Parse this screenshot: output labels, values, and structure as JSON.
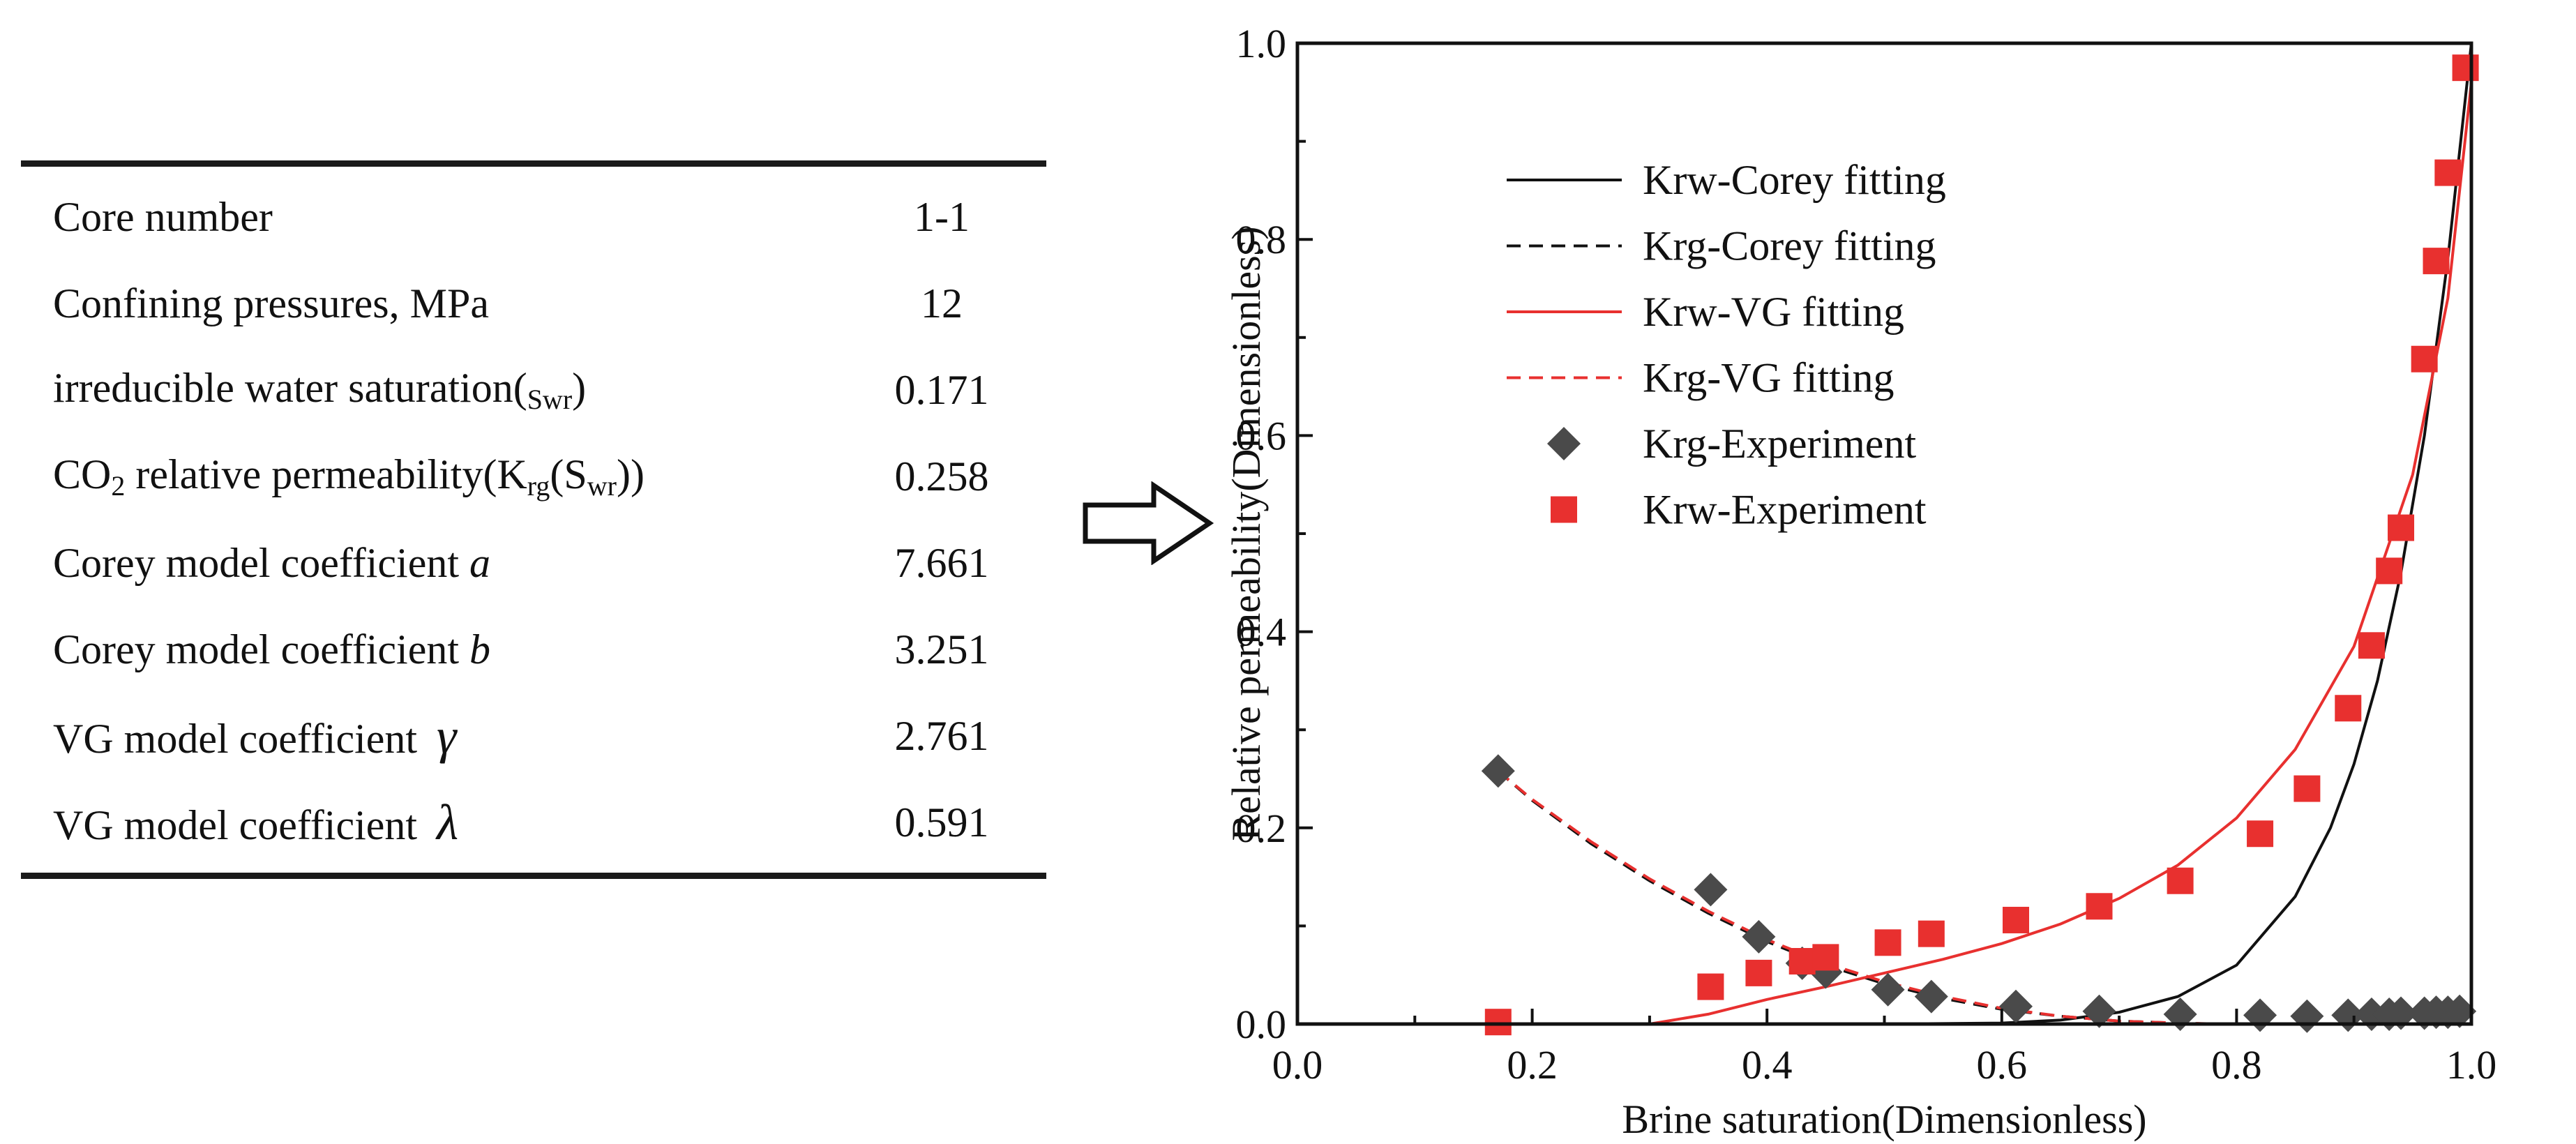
{
  "table": {
    "rows": [
      {
        "label": "Core number",
        "value": "1-1"
      },
      {
        "label": "Confining pressures, MPa",
        "value": "12"
      },
      {
        "label": "irreducible water saturation(",
        "sub": "Swr",
        "tail": ")",
        "value": "0.171"
      },
      {
        "label": "CO",
        "sub": "2",
        "label2": " relative permeability(K",
        "sub2": "rg",
        "label3": "(S",
        "sub3": "wr",
        "tail": "))",
        "value": "0.258"
      },
      {
        "label": "Corey model coefficient ",
        "symbol": "a",
        "value": "7.661"
      },
      {
        "label": "Corey model coefficient ",
        "symbol": "b",
        "value": "3.251"
      },
      {
        "label": "VG model coefficient",
        "symbol": "γ",
        "value": "2.761"
      },
      {
        "label": "VG model coefficient",
        "symbol": "λ",
        "value": "0.591"
      }
    ]
  },
  "chart_data": {
    "type": "scatter",
    "xlabel": "Brine saturation(Dimensionless)",
    "ylabel": "Relative permeability(Dimensionless)",
    "xlim": [
      0.0,
      1.0
    ],
    "ylim": [
      0.0,
      1.0
    ],
    "x_ticks": [
      0.0,
      0.2,
      0.4,
      0.6,
      0.8,
      1.0
    ],
    "y_ticks": [
      0.0,
      0.2,
      0.4,
      0.6,
      0.8,
      1.0
    ],
    "tick_labels_x": [
      "0.0",
      "0.2",
      "0.4",
      "0.6",
      "0.8",
      "1.0"
    ],
    "tick_labels_y": [
      "0.0",
      "0.2",
      "0.4",
      "0.6",
      "0.8",
      "1.0"
    ],
    "grid": false,
    "legend_position": "upper-left",
    "series": [
      {
        "name": "Krw-Corey fitting",
        "kind": "line",
        "style": "solid",
        "color": "#111111",
        "x": [
          0.171,
          0.3,
          0.4,
          0.5,
          0.6,
          0.65,
          0.7,
          0.75,
          0.8,
          0.85,
          0.88,
          0.9,
          0.92,
          0.94,
          0.96,
          0.98,
          1.0
        ],
        "y": [
          0.0,
          0.0,
          0.0,
          0.0,
          0.001,
          0.004,
          0.012,
          0.028,
          0.06,
          0.13,
          0.2,
          0.265,
          0.35,
          0.46,
          0.6,
          0.78,
          1.0
        ]
      },
      {
        "name": "Krg-Corey fitting",
        "kind": "line",
        "style": "dashed",
        "color": "#111111",
        "x": [
          0.171,
          0.2,
          0.25,
          0.3,
          0.35,
          0.4,
          0.45,
          0.5,
          0.55,
          0.6,
          0.65,
          0.7,
          0.75,
          0.78
        ],
        "y": [
          0.258,
          0.228,
          0.184,
          0.146,
          0.113,
          0.084,
          0.06,
          0.041,
          0.026,
          0.015,
          0.008,
          0.003,
          0.001,
          0.0
        ]
      },
      {
        "name": "Krw-VG fitting",
        "kind": "line",
        "style": "solid",
        "color": "#e8302f",
        "x": [
          0.171,
          0.3,
          0.35,
          0.4,
          0.45,
          0.5,
          0.55,
          0.6,
          0.65,
          0.7,
          0.75,
          0.8,
          0.85,
          0.9,
          0.95,
          0.98,
          1.0
        ],
        "y": [
          0.0,
          0.0,
          0.01,
          0.025,
          0.038,
          0.052,
          0.066,
          0.082,
          0.102,
          0.128,
          0.162,
          0.21,
          0.28,
          0.385,
          0.56,
          0.74,
          0.96
        ]
      },
      {
        "name": "Krg-VG fitting",
        "kind": "line",
        "style": "dashed",
        "color": "#e8302f",
        "x": [
          0.171,
          0.2,
          0.25,
          0.3,
          0.35,
          0.4,
          0.45,
          0.5,
          0.55,
          0.6,
          0.65,
          0.7,
          0.75,
          0.79
        ],
        "y": [
          0.258,
          0.229,
          0.186,
          0.148,
          0.115,
          0.086,
          0.062,
          0.043,
          0.028,
          0.016,
          0.008,
          0.003,
          0.001,
          0.0
        ]
      },
      {
        "name": "Krg-Experiment",
        "kind": "marker",
        "marker": "diamond",
        "color": "#4a4a4a",
        "x": [
          0.171,
          0.352,
          0.393,
          0.43,
          0.45,
          0.503,
          0.54,
          0.612,
          0.683,
          0.752,
          0.82,
          0.86,
          0.895,
          0.915,
          0.93,
          0.94,
          0.96,
          0.97,
          0.98,
          0.99
        ],
        "y": [
          0.258,
          0.137,
          0.089,
          0.062,
          0.053,
          0.035,
          0.028,
          0.018,
          0.013,
          0.01,
          0.009,
          0.008,
          0.009,
          0.01,
          0.01,
          0.011,
          0.011,
          0.012,
          0.012,
          0.013
        ]
      },
      {
        "name": "Krw-Experiment",
        "kind": "marker",
        "marker": "square",
        "color": "#e8302f",
        "x": [
          0.171,
          0.352,
          0.393,
          0.43,
          0.45,
          0.503,
          0.54,
          0.612,
          0.683,
          0.752,
          0.82,
          0.86,
          0.895,
          0.915,
          0.93,
          0.94,
          0.96,
          0.97,
          0.98,
          0.995
        ],
        "y": [
          0.002,
          0.038,
          0.052,
          0.064,
          0.068,
          0.083,
          0.092,
          0.106,
          0.12,
          0.146,
          0.194,
          0.24,
          0.322,
          0.386,
          0.462,
          0.506,
          0.678,
          0.778,
          0.868,
          0.975
        ]
      }
    ]
  }
}
